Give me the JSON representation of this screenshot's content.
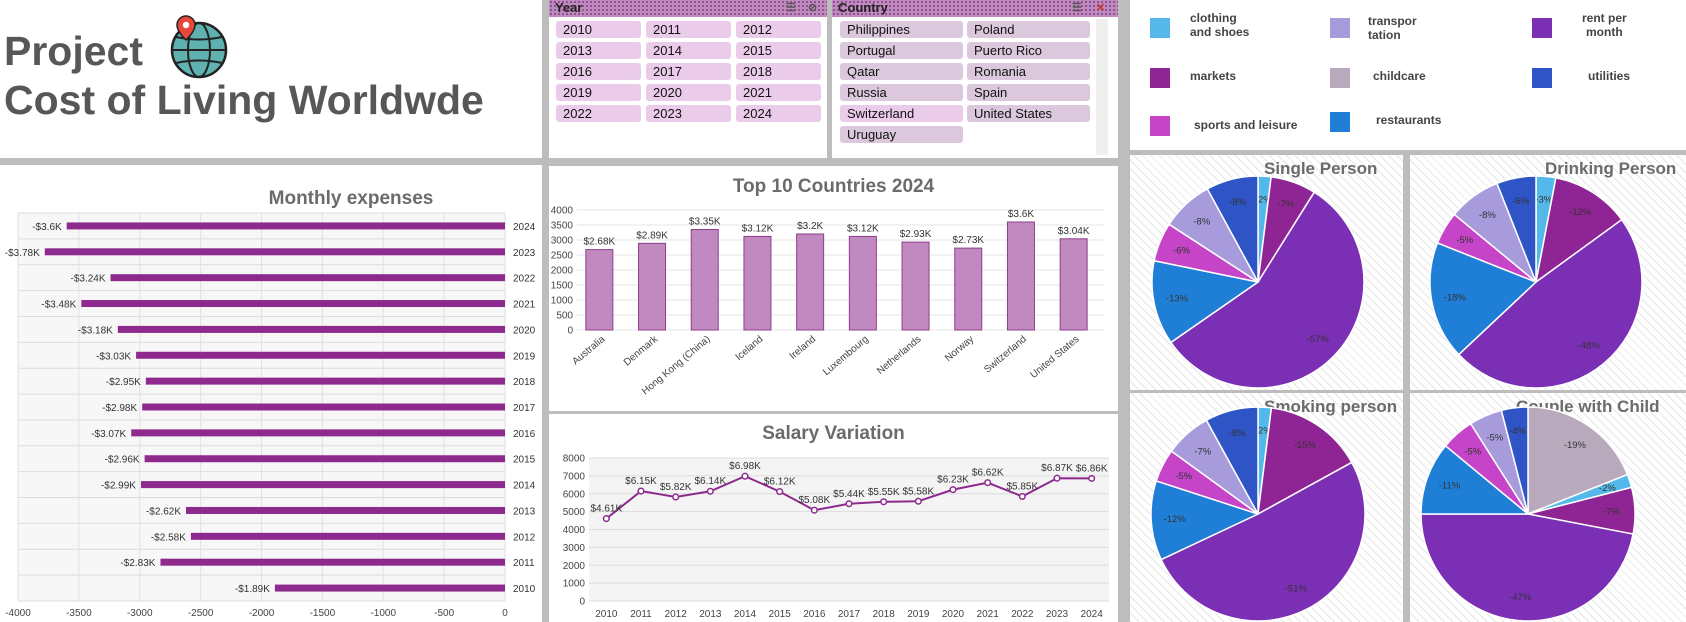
{
  "header": {
    "title_line1": "Project",
    "title_line2": "Cost of Living Worldwde"
  },
  "slicer_year": {
    "title": "Year",
    "items": [
      "2010",
      "2011",
      "2012",
      "2013",
      "2014",
      "2015",
      "2016",
      "2017",
      "2018",
      "2019",
      "2020",
      "2021",
      "2022",
      "2023",
      "2024"
    ]
  },
  "slicer_country": {
    "title": "Country",
    "items": [
      "Philippines",
      "Poland",
      "Portugal",
      "Puerto Rico",
      "Qatar",
      "Romania",
      "Russia",
      "Spain",
      "Switzerland",
      "United States",
      "Uruguay"
    ]
  },
  "legend": [
    {
      "label": "clothing\nand shoes",
      "color": "#55b8ea"
    },
    {
      "label": "transpor\ntation",
      "color": "#a79bdb"
    },
    {
      "label": "rent per\nmonth",
      "color": "#7b2fb5"
    },
    {
      "label": "markets",
      "color": "#8f2594"
    },
    {
      "label": "childcare",
      "color": "#b9a9bd"
    },
    {
      "label": "utilities",
      "color": "#2e54c6"
    },
    {
      "label": "sports and leisure",
      "color": "#c544c8"
    },
    {
      "label": "restaurants",
      "color": "#1f7fd6"
    }
  ],
  "chart_data": [
    {
      "type": "bar",
      "orientation": "horizontal",
      "title": "Monthly expenses",
      "categories": [
        "2024",
        "2023",
        "2022",
        "2021",
        "2020",
        "2019",
        "2018",
        "2017",
        "2016",
        "2015",
        "2014",
        "2013",
        "2012",
        "2011",
        "2010"
      ],
      "values": [
        -3600,
        -3780,
        -3240,
        -3480,
        -3180,
        -3030,
        -2950,
        -2980,
        -3070,
        -2960,
        -2990,
        -2620,
        -2580,
        -2830,
        -1890
      ],
      "data_labels": [
        "-$3.6K",
        "-$3.78K",
        "-$3.24K",
        "-$3.48K",
        "-$3.18K",
        "-$3.03K",
        "-$2.95K",
        "-$2.98K",
        "-$3.07K",
        "-$2.96K",
        "-$2.99K",
        "-$2.62K",
        "-$2.58K",
        "-$2.83K",
        "-$1.89K"
      ],
      "xlim": [
        -4000,
        0
      ],
      "xticks": [
        "-4000",
        "-3500",
        "-3000",
        "-2500",
        "-2000",
        "-1500",
        "-1000",
        "-500",
        "0"
      ],
      "color": "#8e2a8e"
    },
    {
      "type": "bar",
      "title": "Top 10 Countries 2024",
      "categories": [
        "Australia",
        "Denmark",
        "Hong Kong (China)",
        "Iceland",
        "Ireland",
        "Luxembourg",
        "Netherlands",
        "Norway",
        "Switzerland",
        "United States"
      ],
      "values": [
        2680,
        2890,
        3350,
        3120,
        3200,
        3120,
        2930,
        2730,
        3600,
        3040
      ],
      "data_labels": [
        "$2.68K",
        "$2.89K",
        "$3.35K",
        "$3.12K",
        "$3.2K",
        "$3.12K",
        "$2.93K",
        "$2.73K",
        "$3.6K",
        "$3.04K"
      ],
      "ylim": [
        0,
        4000
      ],
      "yticks": [
        "0",
        "500",
        "1000",
        "1500",
        "2000",
        "2500",
        "3000",
        "3500",
        "4000"
      ],
      "color": "#c08ac0"
    },
    {
      "type": "line",
      "title": "Salary Variation",
      "x": [
        "2010",
        "2011",
        "2012",
        "2013",
        "2014",
        "2015",
        "2016",
        "2017",
        "2018",
        "2019",
        "2020",
        "2021",
        "2022",
        "2023",
        "2024"
      ],
      "values": [
        4610,
        6150,
        5820,
        6140,
        6980,
        6120,
        5080,
        5440,
        5550,
        5580,
        6230,
        6620,
        5850,
        6870,
        6860
      ],
      "data_labels": [
        "$4.61K",
        "$6.15K",
        "$5.82K",
        "$6.14K",
        "$6.98K",
        "$6.12K",
        "$5.08K",
        "$5.44K",
        "$5.55K",
        "$5.58K",
        "$6.23K",
        "$6.62K",
        "$5.85K",
        "$6.87K",
        "$6.86K"
      ],
      "ylim": [
        0,
        8000
      ],
      "yticks": [
        "0",
        "1000",
        "2000",
        "3000",
        "4000",
        "5000",
        "6000",
        "7000",
        "8000"
      ],
      "color": "#8e2a8e"
    },
    {
      "type": "pie",
      "title": "Single Person",
      "slices": [
        {
          "category": "clothing and shoes",
          "value": 2,
          "label": "-2%"
        },
        {
          "category": "markets",
          "value": 7,
          "label": "-7%"
        },
        {
          "category": "rent per month",
          "value": 57,
          "label": "-57%"
        },
        {
          "category": "restaurants",
          "value": 13,
          "label": "-13%"
        },
        {
          "category": "sports and leisure",
          "value": 6,
          "label": "-6%"
        },
        {
          "category": "transportation",
          "value": 8,
          "label": "-8%"
        },
        {
          "category": "utilities",
          "value": 8,
          "label": "-8%"
        }
      ]
    },
    {
      "type": "pie",
      "title": "Drinking Person",
      "slices": [
        {
          "category": "clothing and shoes",
          "value": 3,
          "label": "-3%"
        },
        {
          "category": "markets",
          "value": 12,
          "label": "-12%"
        },
        {
          "category": "rent per month",
          "value": 48,
          "label": "-48%"
        },
        {
          "category": "restaurants",
          "value": 18,
          "label": "-18%"
        },
        {
          "category": "sports and leisure",
          "value": 5,
          "label": "-5%"
        },
        {
          "category": "transportation",
          "value": 8,
          "label": "-8%"
        },
        {
          "category": "utilities",
          "value": 6,
          "label": "-6%"
        }
      ]
    },
    {
      "type": "pie",
      "title": "Smoking person",
      "slices": [
        {
          "category": "clothing and shoes",
          "value": 2,
          "label": "-2%"
        },
        {
          "category": "markets",
          "value": 15,
          "label": "-15%"
        },
        {
          "category": "rent per month",
          "value": 51,
          "label": "-51%"
        },
        {
          "category": "restaurants",
          "value": 12,
          "label": "-12%"
        },
        {
          "category": "sports and leisure",
          "value": 5,
          "label": "-5%"
        },
        {
          "category": "transportation",
          "value": 7,
          "label": "-7%"
        },
        {
          "category": "utilities",
          "value": 8,
          "label": "-8%"
        }
      ]
    },
    {
      "type": "pie",
      "title": "Couple with Child",
      "slices": [
        {
          "category": "childcare",
          "value": 19,
          "label": "-19%"
        },
        {
          "category": "clothing and shoes",
          "value": 2,
          "label": "-2%"
        },
        {
          "category": "markets",
          "value": 7,
          "label": "-7%"
        },
        {
          "category": "rent per month",
          "value": 47,
          "label": "-47%"
        },
        {
          "category": "restaurants",
          "value": 11,
          "label": "-11%"
        },
        {
          "category": "sports and leisure",
          "value": 5,
          "label": "-5%"
        },
        {
          "category": "transportation",
          "value": 5,
          "label": "-5%"
        },
        {
          "category": "utilities",
          "value": 4,
          "label": "-4%"
        }
      ]
    }
  ]
}
